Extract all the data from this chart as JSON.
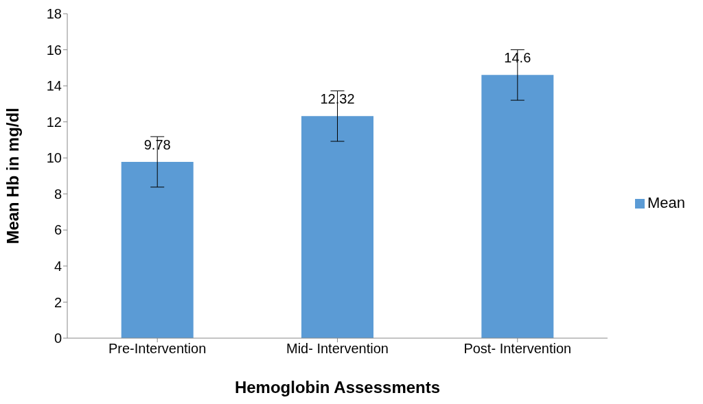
{
  "chart_data": {
    "type": "bar",
    "xlabel": "Hemoglobin Assessments",
    "ylabel": "Mean Hb in mg/dl",
    "categories": [
      "Pre-Intervention",
      "Mid- Intervention",
      "Post- Intervention"
    ],
    "series": [
      {
        "name": "Mean",
        "color": "#5b9bd5",
        "values": [
          9.78,
          12.32,
          14.6
        ],
        "errors": [
          1.4,
          1.4,
          1.4
        ]
      }
    ],
    "ylim": [
      0,
      18
    ],
    "yticks": [
      0,
      2,
      4,
      6,
      8,
      10,
      12,
      14,
      16,
      18
    ],
    "grid": false,
    "legend": "right",
    "data_labels": true
  }
}
